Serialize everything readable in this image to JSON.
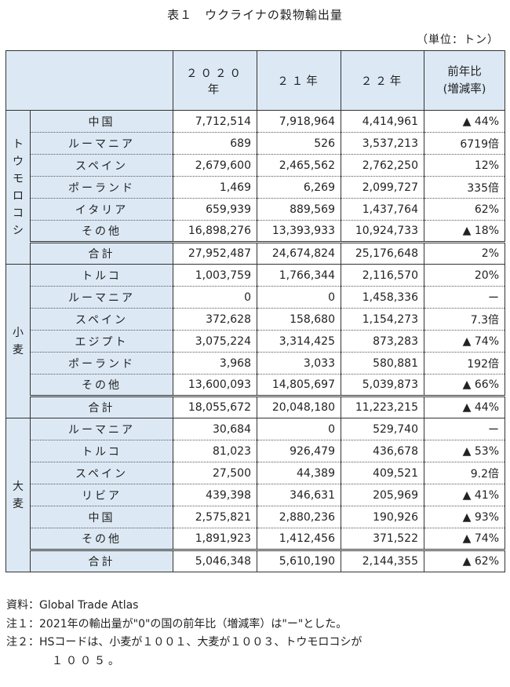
{
  "title": "表１　ウクライナの穀物輸出量",
  "unit": "（単位：トン）",
  "header": {
    "c2020": "２０２０年",
    "c21": "２１年",
    "c22": "２２年",
    "ratio_line1": "前年比",
    "ratio_line2": "(増減率)"
  },
  "groups": [
    {
      "label": "ト\nウ\nモ\nロ\nコ\nシ",
      "rows": [
        {
          "name": "中国",
          "v2020": "7,712,514",
          "v21": "7,918,964",
          "v22": "4,414,961",
          "ratio": "▲ 44%"
        },
        {
          "name": "ルーマニア",
          "v2020": "689",
          "v21": "526",
          "v22": "3,537,213",
          "ratio": "6719倍"
        },
        {
          "name": "スペイン",
          "v2020": "2,679,600",
          "v21": "2,465,562",
          "v22": "2,762,250",
          "ratio": "12%"
        },
        {
          "name": "ポーランド",
          "v2020": "1,469",
          "v21": "6,269",
          "v22": "2,099,727",
          "ratio": "335倍"
        },
        {
          "name": "イタリア",
          "v2020": "659,939",
          "v21": "889,569",
          "v22": "1,437,764",
          "ratio": "62%"
        },
        {
          "name": "その他",
          "v2020": "16,898,276",
          "v21": "13,393,933",
          "v22": "10,924,733",
          "ratio": "▲ 18%"
        },
        {
          "name": "合計",
          "v2020": "27,952,487",
          "v21": "24,674,824",
          "v22": "25,176,648",
          "ratio": "2%"
        }
      ]
    },
    {
      "label": "小\n麦",
      "rows": [
        {
          "name": "トルコ",
          "v2020": "1,003,759",
          "v21": "1,766,344",
          "v22": "2,116,570",
          "ratio": "20%"
        },
        {
          "name": "ルーマニア",
          "v2020": "0",
          "v21": "0",
          "v22": "1,458,336",
          "ratio": "ー"
        },
        {
          "name": "スペイン",
          "v2020": "372,628",
          "v21": "158,680",
          "v22": "1,154,273",
          "ratio": "7.3倍"
        },
        {
          "name": "エジプト",
          "v2020": "3,075,224",
          "v21": "3,314,425",
          "v22": "873,283",
          "ratio": "▲ 74%"
        },
        {
          "name": "ポーランド",
          "v2020": "3,968",
          "v21": "3,033",
          "v22": "580,881",
          "ratio": "192倍"
        },
        {
          "name": "その他",
          "v2020": "13,600,093",
          "v21": "14,805,697",
          "v22": "5,039,873",
          "ratio": "▲ 66%"
        },
        {
          "name": "合計",
          "v2020": "18,055,672",
          "v21": "20,048,180",
          "v22": "11,223,215",
          "ratio": "▲ 44%"
        }
      ]
    },
    {
      "label": "大\n麦",
      "rows": [
        {
          "name": "ルーマニア",
          "v2020": "30,684",
          "v21": "0",
          "v22": "529,740",
          "ratio": "ー"
        },
        {
          "name": "トルコ",
          "v2020": "81,023",
          "v21": "926,479",
          "v22": "436,678",
          "ratio": "▲ 53%"
        },
        {
          "name": "スペイン",
          "v2020": "27,500",
          "v21": "44,389",
          "v22": "409,521",
          "ratio": "9.2倍"
        },
        {
          "name": "リビア",
          "v2020": "439,398",
          "v21": "346,631",
          "v22": "205,969",
          "ratio": "▲ 41%"
        },
        {
          "name": "中国",
          "v2020": "2,575,821",
          "v21": "2,880,236",
          "v22": "190,926",
          "ratio": "▲ 93%"
        },
        {
          "name": "その他",
          "v2020": "1,891,923",
          "v21": "1,412,456",
          "v22": "371,522",
          "ratio": "▲ 74%"
        },
        {
          "name": "合計",
          "v2020": "5,046,348",
          "v21": "5,610,190",
          "v22": "2,144,355",
          "ratio": "▲ 62%"
        }
      ]
    }
  ],
  "notes": {
    "source": "資料：Global Trade Atlas",
    "note1": "注１：2021年の輸出量が\"0\"の国の前年比（増減率）は\"ー\"とした。",
    "note2": "注２：HSコードは、小麦が１００１、大麦が１００３、トウモロコシが",
    "note2_cont": "１００５。"
  }
}
